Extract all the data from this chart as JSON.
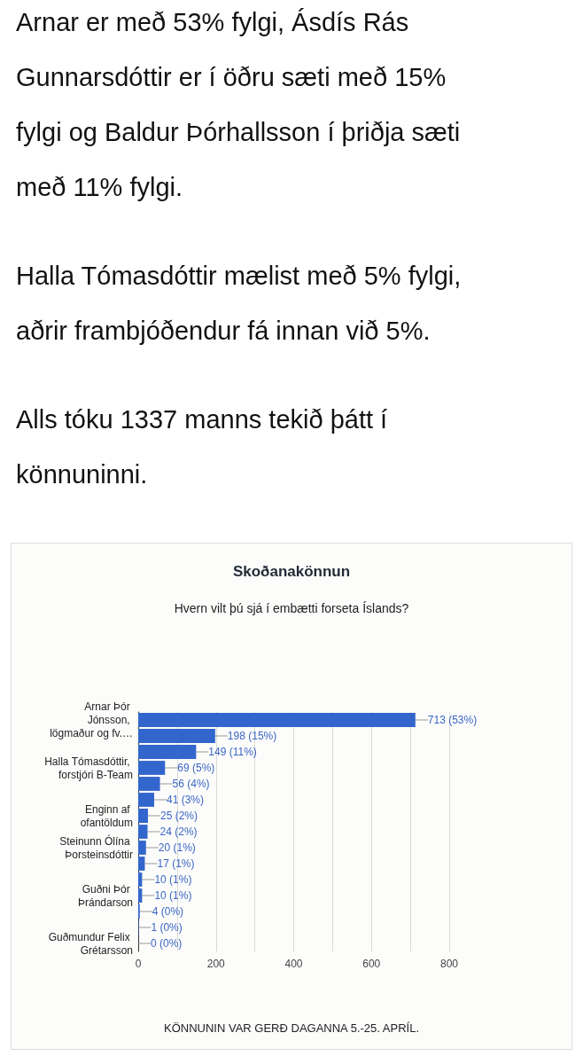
{
  "chart_data": {
    "type": "bar",
    "orientation": "horizontal",
    "title": "Skoðanakönnun",
    "subtitle": "Hvern vilt þú sjá í embætti forseta Íslands?",
    "annotations": [
      "Arnar er með 53% fylgi, Ásdís Rás Gunnarsdóttir er í öðru sæti með 15% fylgi og Baldur Þórhallsson í þriðja sæti með 11% fylgi.",
      "Halla Tómasdóttir mælist með 5% fylgi, aðrir frambjóðendur fá innan við 5%.",
      "Alls tóku 1337 manns tekið þátt í könnuninni.",
      "KÖNNUNIN VAR GERÐ DAGANNA 5.-25. APRÍL."
    ],
    "categories": [
      "Arnar Þór Jónsson, lögmaður og fv.…",
      null,
      null,
      "Halla Tómasdóttir, forstjóri B-Team",
      null,
      null,
      "Enginn af ofantöldum",
      null,
      "Steinunn Ólína Þorsteinsdóttir",
      null,
      null,
      "Guðni Þór Þrándarson",
      null,
      null,
      "Guðmundur Felix Grétarsson"
    ],
    "values": [
      713,
      198,
      149,
      69,
      56,
      41,
      25,
      24,
      20,
      17,
      10,
      10,
      4,
      1,
      0
    ],
    "value_labels": [
      "713 (53%)",
      "198 (15%)",
      "149 (11%)",
      "69 (5%)",
      "56 (4%)",
      "41 (3%)",
      "25 (2%)",
      "24 (2%)",
      "20 (1%)",
      "17 (1%)",
      "10 (1%)",
      "10 (1%)",
      "4 (0%)",
      "1 (0%)",
      "0 (0%)"
    ],
    "color": "#3366cc",
    "xlim": [
      0,
      800
    ],
    "xticks": [
      0,
      {
        "value": 100,
        "label": null
      },
      200,
      {
        "value": 300,
        "label": null
      },
      400,
      {
        "value": 500,
        "label": null
      },
      600,
      {
        "value": 700,
        "label": null
      },
      800
    ],
    "grid": "x"
  }
}
